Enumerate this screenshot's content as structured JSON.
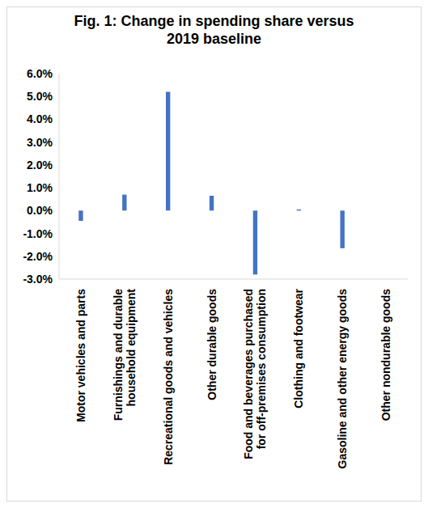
{
  "chart_data": {
    "type": "bar",
    "title": "Fig. 1: Change in spending share versus 2019 baseline",
    "categories": [
      "Motor vehicles and parts",
      "Furnishings and durable household equipment",
      "Recreational goods and vehicles",
      "Other durable goods",
      "Food and beverages purchased for off-premises consumption",
      "Clothing and footwear",
      "Gasoline and other energy goods",
      "Other nondurable goods"
    ],
    "values": [
      -0.45,
      0.7,
      5.2,
      0.65,
      -2.8,
      0.05,
      -1.65,
      0
    ],
    "color": "#4472c4",
    "ylim": [
      -3,
      6
    ],
    "yticks": [
      {
        "value": -3,
        "label": "-3.0%"
      },
      {
        "value": -2,
        "label": "-2.0%"
      },
      {
        "value": -1,
        "label": "-1.0%"
      },
      {
        "value": 0,
        "label": "0.0%"
      },
      {
        "value": 1,
        "label": "1.0%"
      },
      {
        "value": 2,
        "label": "2.0%"
      },
      {
        "value": 3,
        "label": "3.0%"
      },
      {
        "value": 4,
        "label": "4.0%"
      },
      {
        "value": 5,
        "label": "5.0%"
      },
      {
        "value": 6,
        "label": "6.0%"
      }
    ],
    "grid": false
  }
}
